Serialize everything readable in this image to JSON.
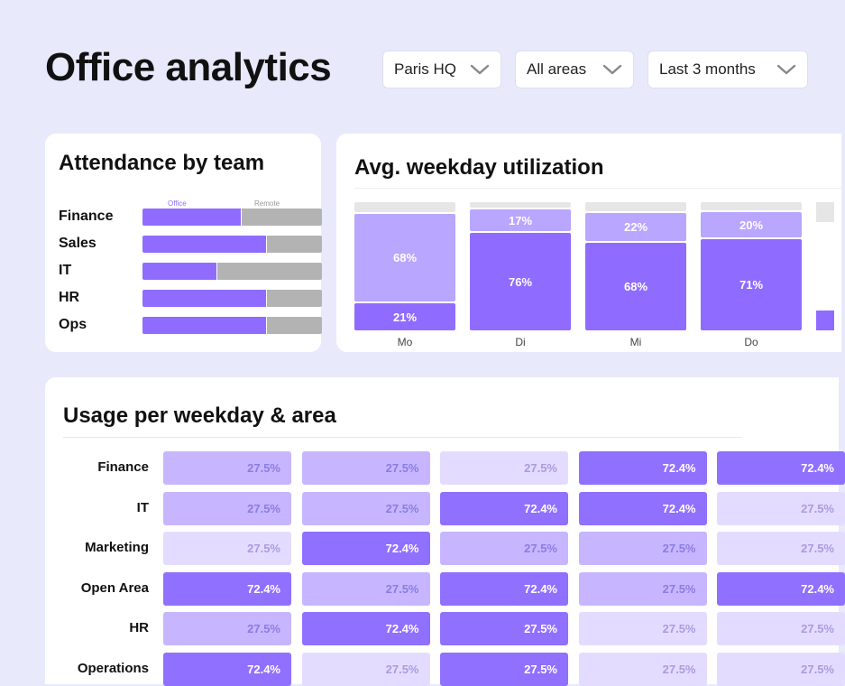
{
  "header": {
    "title": "Office analytics",
    "filters": [
      {
        "label": "Paris HQ"
      },
      {
        "label": "All areas"
      },
      {
        "label": "Last 3 months"
      }
    ]
  },
  "attendance": {
    "title": "Attendance by team",
    "legend_office": "Office",
    "legend_remote": "Remote",
    "teams": [
      {
        "label": "Finance",
        "office": 0.55
      },
      {
        "label": "Sales",
        "office": 0.69
      },
      {
        "label": "IT",
        "office": 0.41
      },
      {
        "label": "HR",
        "office": 0.69
      },
      {
        "label": "Ops",
        "office": 0.69
      }
    ],
    "colors": {
      "office": "#8f6cff",
      "remote": "#b3b3b3"
    }
  },
  "utilization": {
    "title": "Avg. weekday utilization",
    "days": [
      {
        "label": "Mo",
        "low": "21%",
        "high": "68%",
        "low_v": 21,
        "high_v": 68
      },
      {
        "label": "Di",
        "low": "76%",
        "high": "17%",
        "low_v": 76,
        "high_v": 17
      },
      {
        "label": "Mi",
        "low": "68%",
        "high": "22%",
        "low_v": 68,
        "high_v": 22
      },
      {
        "label": "Do",
        "low": "71%",
        "high": "20%",
        "low_v": 71,
        "high_v": 20
      }
    ],
    "colors": {
      "low": "#8f6cff",
      "high": "#b9a6ff",
      "rest": "#e6e6e6"
    }
  },
  "heatmap": {
    "title": "Usage per weekday & area",
    "rows": [
      {
        "label": "Finance",
        "cells": [
          "27.5%",
          "27.5%",
          "27.5%",
          "72.4%",
          "72.4%"
        ],
        "levels": [
          2,
          2,
          1,
          3,
          3
        ]
      },
      {
        "label": "IT",
        "cells": [
          "27.5%",
          "27.5%",
          "72.4%",
          "72.4%",
          "27.5%"
        ],
        "levels": [
          2,
          2,
          3,
          3,
          1
        ]
      },
      {
        "label": "Marketing",
        "cells": [
          "27.5%",
          "72.4%",
          "27.5%",
          "27.5%",
          "27.5%"
        ],
        "levels": [
          1,
          3,
          2,
          2,
          1
        ]
      },
      {
        "label": "Open Area",
        "cells": [
          "72.4%",
          "27.5%",
          "72.4%",
          "27.5%",
          "72.4%"
        ],
        "levels": [
          3,
          2,
          3,
          2,
          3
        ]
      },
      {
        "label": "HR",
        "cells": [
          "27.5%",
          "72.4%",
          "27.5%",
          "27.5%",
          "27.5%"
        ],
        "levels": [
          2,
          3,
          3,
          1,
          1
        ]
      },
      {
        "label": "Operations",
        "cells": [
          "72.4%",
          "27.5%",
          "27.5%",
          "27.5%",
          "27.5%"
        ],
        "levels": [
          3,
          1,
          3,
          1,
          1
        ]
      }
    ],
    "colors": {
      "l1": "#e4dcff",
      "l2": "#c7b6ff",
      "l3": "#9070ff"
    }
  }
}
